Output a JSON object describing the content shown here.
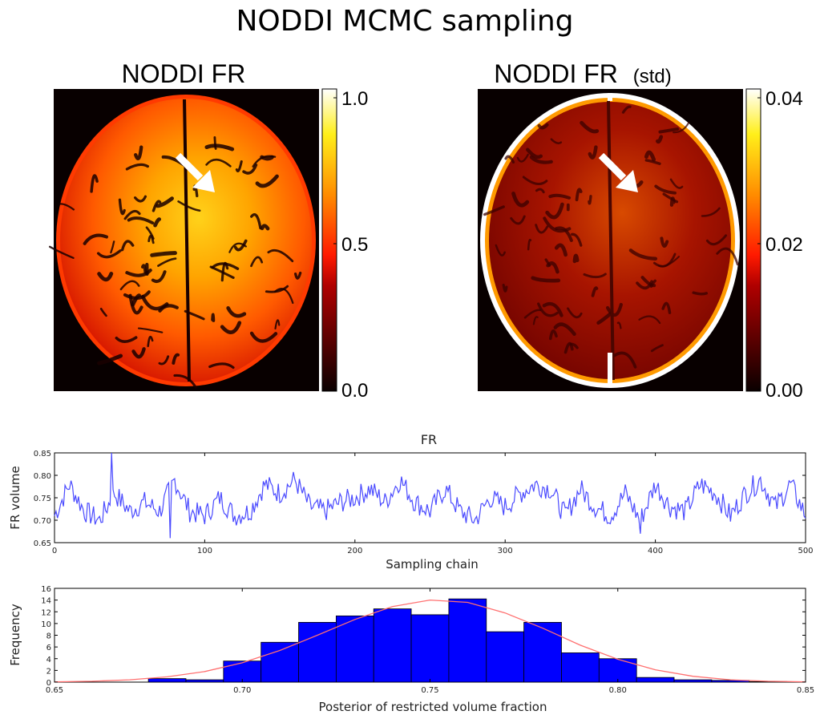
{
  "title": "NODDI MCMC sampling",
  "colors": {
    "trace": "#4a4aff",
    "hist_fill": "#0000ff",
    "hist_edge": "#000000",
    "fit_line": "#ff7070"
  },
  "maps": [
    {
      "name": "fr-map",
      "title": "NODDI FR",
      "title_suffix": "",
      "colormap": "hot",
      "colorbar_ticks": [
        "1.0",
        "0.5",
        "0.0"
      ],
      "arrow_icon": "arrow-down-right-icon",
      "background_mode": "inner"
    },
    {
      "name": "fr-std-map",
      "title": "NODDI FR",
      "title_suffix": "(std)",
      "colormap": "hot",
      "colorbar_ticks": [
        "0.04",
        "0.02",
        "0.00"
      ],
      "arrow_icon": "arrow-down-right-icon",
      "background_mode": "rim"
    }
  ],
  "chart_data": [
    {
      "type": "line",
      "title": "FR",
      "xlabel": "Sampling chain",
      "ylabel": "FR volume",
      "xlim": [
        0,
        500
      ],
      "ylim": [
        0.65,
        0.85
      ],
      "xticks": [
        0,
        100,
        200,
        300,
        400,
        500
      ],
      "yticks": [
        0.65,
        0.7,
        0.75,
        0.8,
        0.85
      ],
      "xtick_labels": [
        "0",
        "100",
        "200",
        "300",
        "400",
        "500"
      ],
      "ytick_labels": [
        "0.65",
        "0.70",
        "0.75",
        "0.80",
        "0.85"
      ],
      "series": [
        {
          "x_start": 0,
          "x_step": 10,
          "values": [
            0.71,
            0.78,
            0.72,
            0.7,
            0.76,
            0.72,
            0.74,
            0.72,
            0.79,
            0.72,
            0.71,
            0.75,
            0.71,
            0.72,
            0.78,
            0.76,
            0.79,
            0.73,
            0.72,
            0.74,
            0.75,
            0.77,
            0.74,
            0.79,
            0.74,
            0.72,
            0.77,
            0.72,
            0.7,
            0.75,
            0.73,
            0.76,
            0.78,
            0.77,
            0.71,
            0.77,
            0.73,
            0.71,
            0.76,
            0.7,
            0.78,
            0.73,
            0.72,
            0.78,
            0.76,
            0.71,
            0.76,
            0.79,
            0.73,
            0.78,
            0.71
          ]
        }
      ],
      "spikes": [
        {
          "x": 38,
          "y": 0.85
        },
        {
          "x": 77,
          "y": 0.66
        },
        {
          "x": 390,
          "y": 0.67
        }
      ]
    },
    {
      "type": "bar",
      "xlabel": "Posterior of restricted volume fraction",
      "ylabel": "Frequency",
      "xlim": [
        0.65,
        0.85
      ],
      "ylim": [
        0,
        16
      ],
      "xticks": [
        0.65,
        0.7,
        0.75,
        0.8,
        0.85
      ],
      "yticks": [
        0,
        2,
        4,
        6,
        8,
        10,
        12,
        14,
        16
      ],
      "xtick_labels": [
        "0.65",
        "0.70",
        "0.75",
        "0.80",
        "0.85"
      ],
      "ytick_labels": [
        "0",
        "2",
        "4",
        "6",
        "8",
        "10",
        "12",
        "14",
        "16"
      ],
      "bin_edges": [
        0.655,
        0.665,
        0.675,
        0.685,
        0.695,
        0.705,
        0.715,
        0.725,
        0.735,
        0.745,
        0.755,
        0.765,
        0.775,
        0.785,
        0.795,
        0.805,
        0.815,
        0.825,
        0.835,
        0.845
      ],
      "counts": [
        0,
        0,
        0.6,
        0.4,
        3.6,
        6.8,
        10.2,
        11.3,
        12.5,
        11.5,
        14.2,
        8.6,
        10.2,
        5.0,
        4.0,
        0.8,
        0.4,
        0.3,
        0.1
      ],
      "fit": {
        "x": [
          0.65,
          0.66,
          0.67,
          0.68,
          0.69,
          0.7,
          0.71,
          0.72,
          0.73,
          0.74,
          0.75,
          0.76,
          0.77,
          0.78,
          0.79,
          0.8,
          0.81,
          0.82,
          0.83,
          0.84,
          0.85
        ],
        "y": [
          0.05,
          0.15,
          0.4,
          0.9,
          1.8,
          3.3,
          5.4,
          8.0,
          10.7,
          12.9,
          14.0,
          13.6,
          11.8,
          9.2,
          6.3,
          3.9,
          2.1,
          1.0,
          0.4,
          0.15,
          0.05
        ]
      }
    }
  ]
}
